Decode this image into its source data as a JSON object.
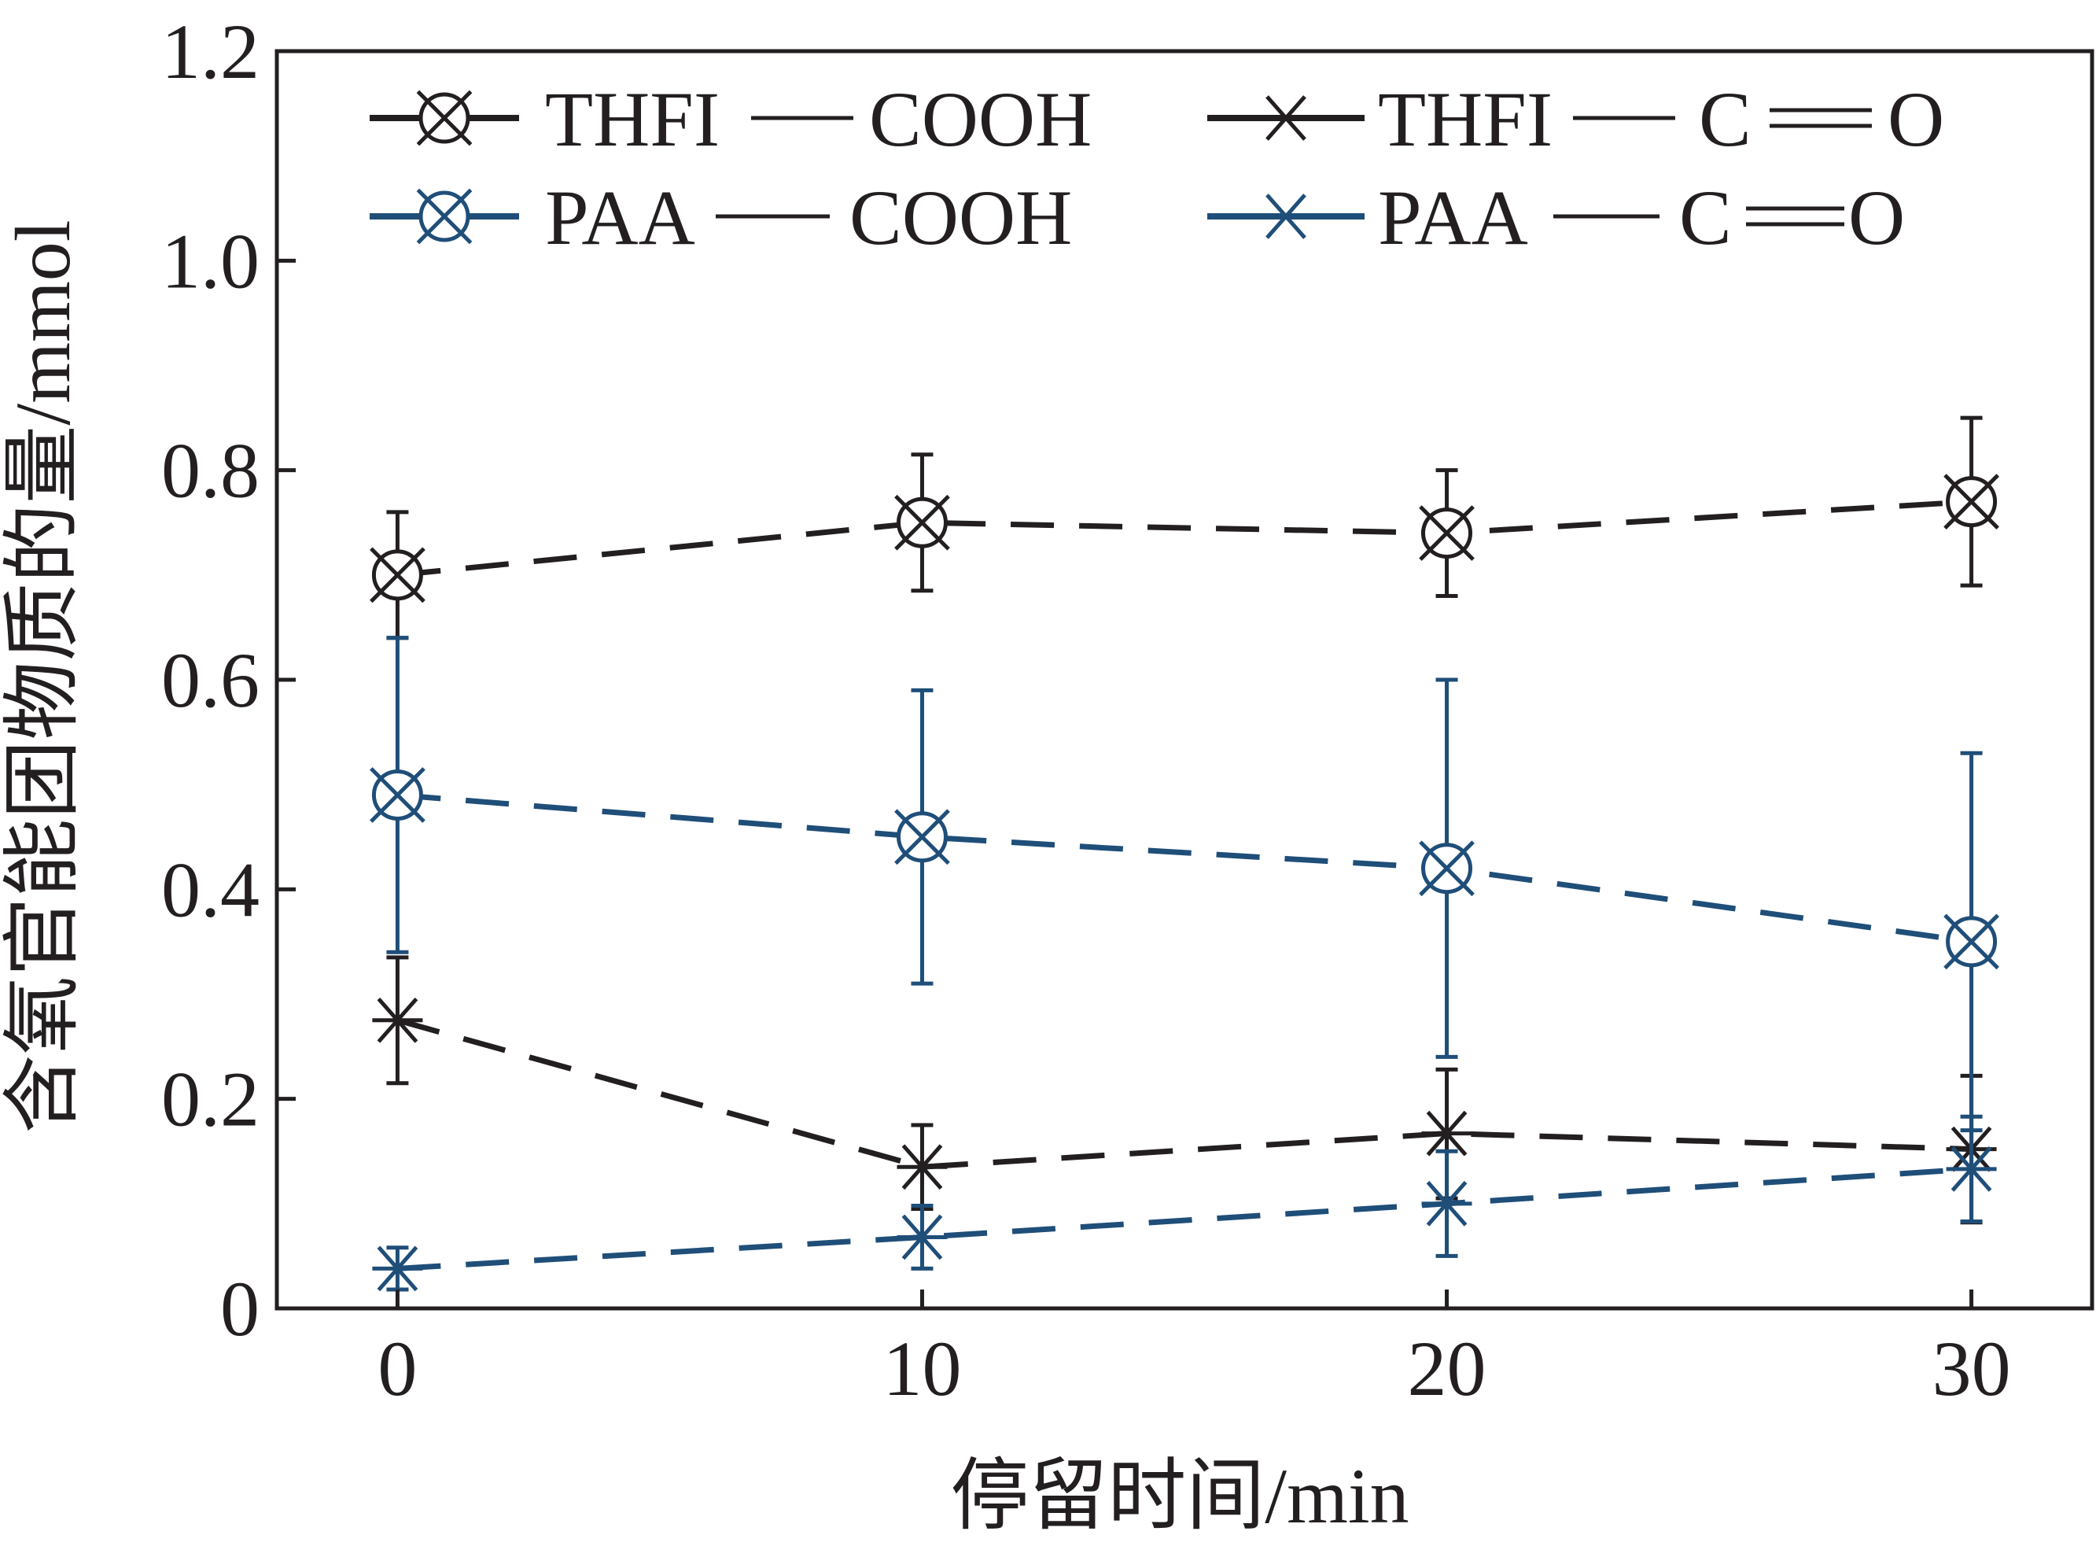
{
  "chart_data": {
    "type": "line",
    "title": "",
    "xlabel": "停留时间/min",
    "ylabel": "含氧官能团物质的量/mmol",
    "x": [
      0,
      10,
      20,
      30
    ],
    "xlim": [
      -2.3,
      32.3
    ],
    "ylim": [
      0,
      1.2
    ],
    "x_ticks": [
      0,
      10,
      20,
      30
    ],
    "x_tick_labels": [
      "0",
      "10",
      "20",
      "30"
    ],
    "y_ticks": [
      0,
      0.2,
      0.4,
      0.6,
      0.8,
      1.0,
      1.2
    ],
    "y_tick_labels": [
      "0",
      "0.2",
      "0.4",
      "0.6",
      "0.8",
      "1.0",
      "1.2"
    ],
    "grid": false,
    "legend_position": "top",
    "series": [
      {
        "name_parts": [
          "THFI",
          "COOH"
        ],
        "values": [
          0.7,
          0.75,
          0.74,
          0.77
        ],
        "err_low": [
          0.64,
          0.685,
          0.68,
          0.69
        ],
        "err_high": [
          0.76,
          0.815,
          0.8,
          0.85
        ],
        "marker": "circle-x",
        "color": "#231f20"
      },
      {
        "name_parts": [
          "THFI",
          "C",
          "O"
        ],
        "values": [
          0.275,
          0.135,
          0.167,
          0.152
        ],
        "err_low": [
          0.215,
          0.095,
          0.105,
          0.082
        ],
        "err_high": [
          0.335,
          0.175,
          0.228,
          0.222
        ],
        "marker": "asterisk",
        "color": "#231f20"
      },
      {
        "name_parts": [
          "PAA",
          "COOH"
        ],
        "values": [
          0.49,
          0.45,
          0.42,
          0.35
        ],
        "err_low": [
          0.34,
          0.31,
          0.24,
          0.17
        ],
        "err_high": [
          0.64,
          0.59,
          0.6,
          0.53
        ],
        "marker": "circle-x",
        "color": "#1f4e79"
      },
      {
        "name_parts": [
          "PAA",
          "C",
          "O"
        ],
        "values": [
          0.038,
          0.068,
          0.1,
          0.133
        ],
        "err_low": [
          0.018,
          0.038,
          0.05,
          0.083
        ],
        "err_high": [
          0.058,
          0.098,
          0.15,
          0.183
        ],
        "marker": "asterisk",
        "color": "#1f4e79"
      }
    ]
  }
}
